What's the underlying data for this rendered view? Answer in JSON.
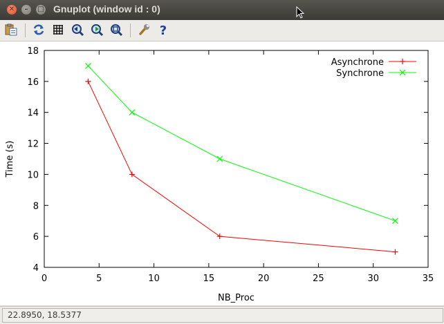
{
  "window": {
    "title": "Gnuplot (window id : 0)",
    "close_glyph": "✕",
    "min_glyph": "–",
    "max_glyph": "□"
  },
  "toolbar": {
    "buttons": [
      {
        "name": "copy-clipboard-icon"
      },
      {
        "name": "replot-icon"
      },
      {
        "name": "grid-icon"
      },
      {
        "name": "zoom-back-icon"
      },
      {
        "name": "zoom-forward-icon"
      },
      {
        "name": "autoscale-icon"
      },
      {
        "name": "config-wrench-icon"
      },
      {
        "name": "help-icon"
      }
    ]
  },
  "status": {
    "coords": "22.8950,  18.5377"
  },
  "chart_data": {
    "type": "line",
    "xlabel": "NB_Proc",
    "ylabel": "Time (s)",
    "xlim": [
      0,
      35
    ],
    "ylim": [
      4,
      18
    ],
    "xticks": [
      0,
      5,
      10,
      15,
      20,
      25,
      30,
      35
    ],
    "yticks": [
      4,
      6,
      8,
      10,
      12,
      14,
      16,
      18
    ],
    "grid": false,
    "legend_position": "top-right",
    "series": [
      {
        "name": "Asynchrone",
        "color": "#ff0000",
        "marker": "plus",
        "x": [
          4,
          8,
          16,
          32
        ],
        "y": [
          16,
          10,
          6,
          5
        ]
      },
      {
        "name": "Synchrone",
        "color": "#00ff00",
        "marker": "cross",
        "x": [
          4,
          8,
          16,
          32
        ],
        "y": [
          17,
          14,
          11,
          7
        ]
      }
    ]
  }
}
